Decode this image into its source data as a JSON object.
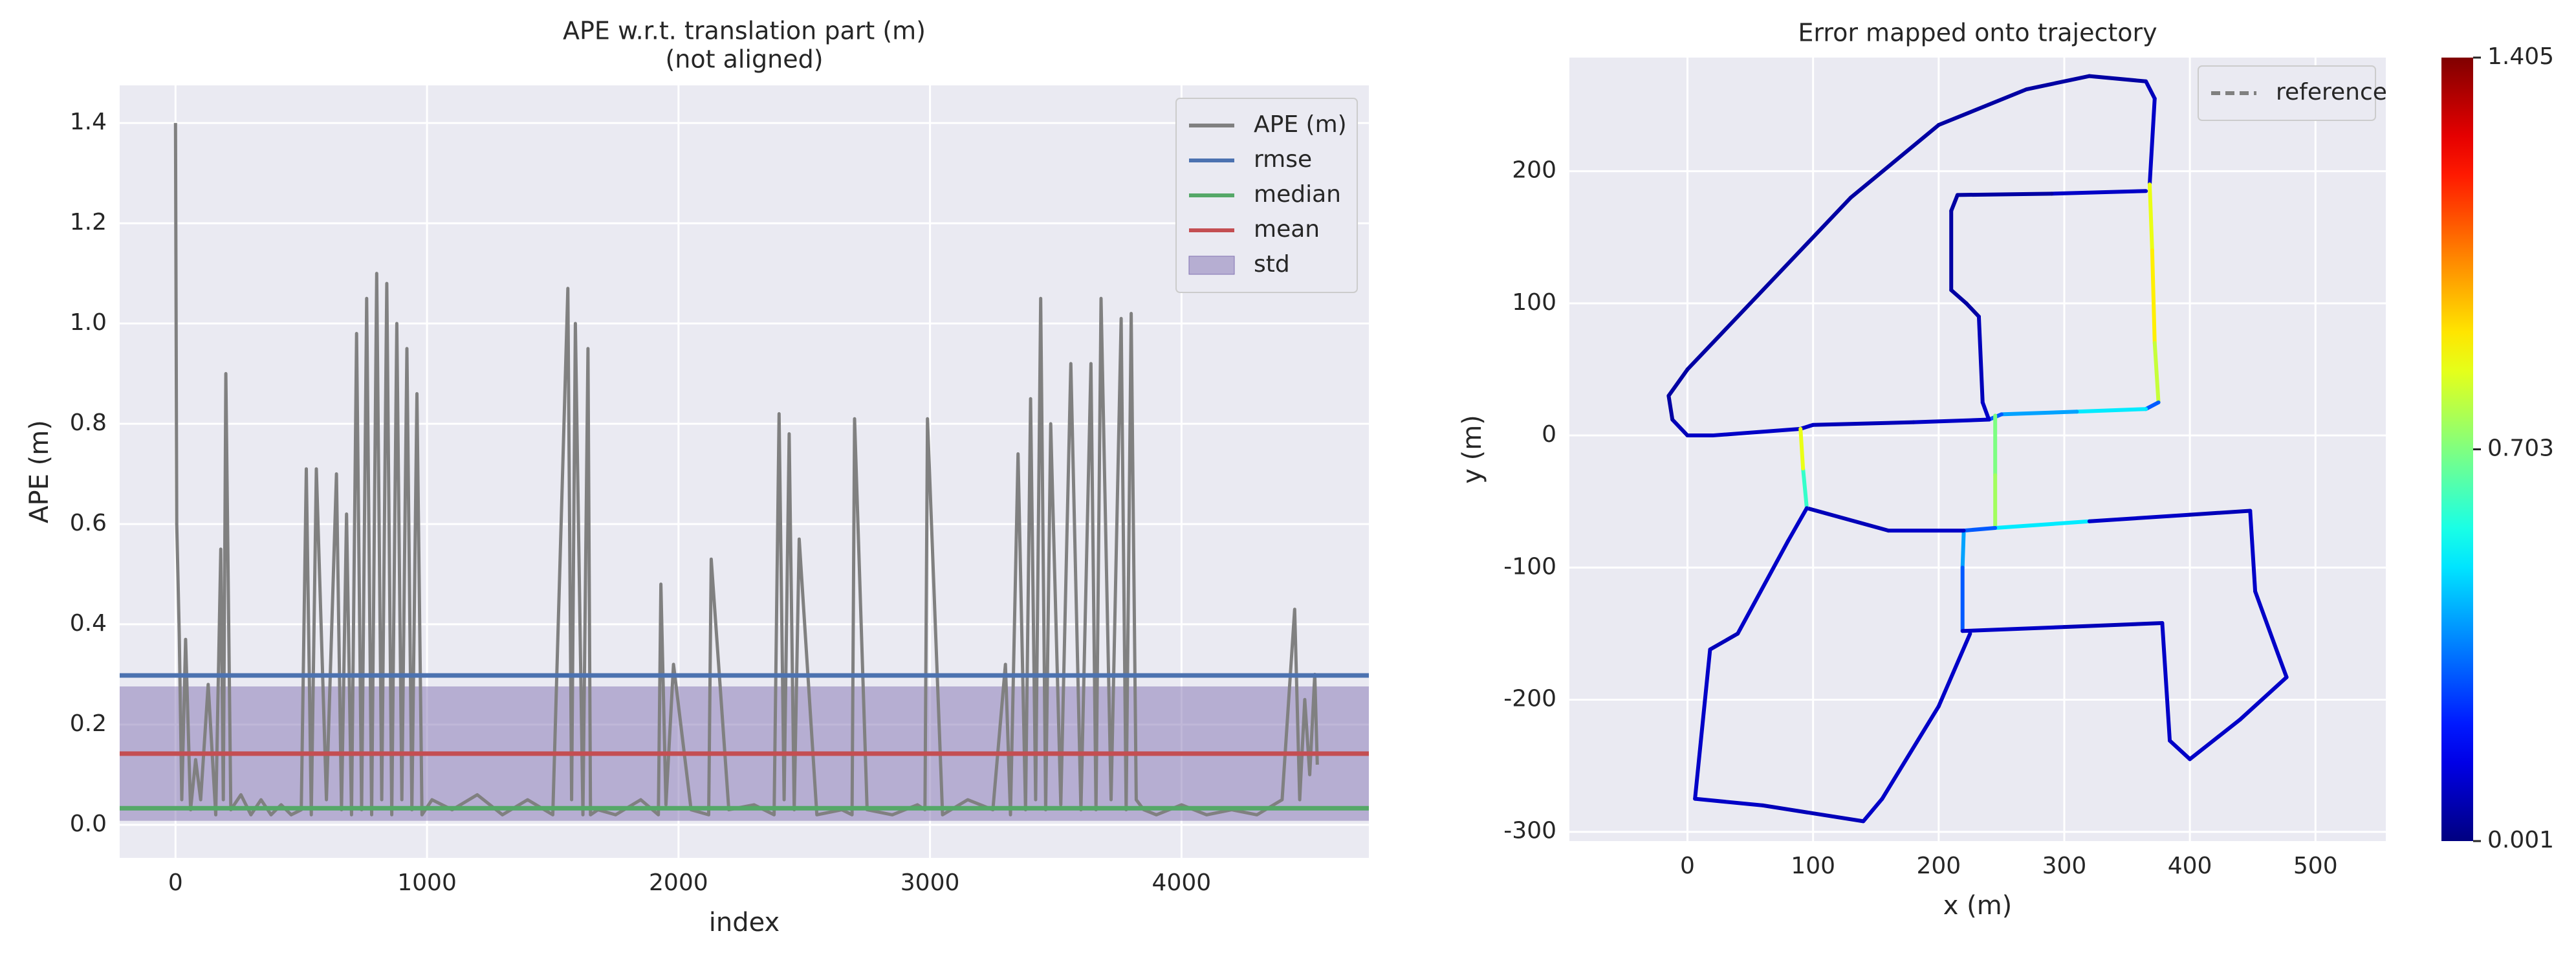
{
  "chart_data": [
    {
      "type": "line",
      "title": "APE w.r.t. translation part (m)",
      "subtitle": "(not aligned)",
      "x_label": "index",
      "y_label": "APE (m)",
      "x": [
        0,
        5,
        15,
        25,
        40,
        60,
        80,
        100,
        130,
        160,
        180,
        190,
        200,
        220,
        260,
        300,
        340,
        380,
        420,
        460,
        500,
        520,
        540,
        560,
        600,
        640,
        660,
        680,
        700,
        720,
        740,
        760,
        780,
        800,
        820,
        840,
        860,
        880,
        900,
        920,
        940,
        960,
        980,
        1020,
        1100,
        1200,
        1300,
        1400,
        1500,
        1560,
        1575,
        1590,
        1620,
        1640,
        1650,
        1680,
        1750,
        1850,
        1920,
        1930,
        1950,
        1980,
        2050,
        2120,
        2130,
        2200,
        2300,
        2380,
        2400,
        2420,
        2440,
        2460,
        2480,
        2550,
        2650,
        2690,
        2700,
        2750,
        2850,
        2950,
        2980,
        2990,
        3050,
        3150,
        3250,
        3300,
        3320,
        3350,
        3380,
        3400,
        3420,
        3440,
        3460,
        3480,
        3520,
        3560,
        3600,
        3640,
        3660,
        3680,
        3720,
        3760,
        3780,
        3800,
        3820,
        3850,
        3900,
        4000,
        4100,
        4200,
        4300,
        4400,
        4450,
        4470,
        4490,
        4510,
        4530,
        4540
      ],
      "series": [
        {
          "name": "APE (m)",
          "color": "#808080",
          "values": [
            1.4,
            0.6,
            0.38,
            0.05,
            0.37,
            0.03,
            0.13,
            0.05,
            0.28,
            0.02,
            0.55,
            0.05,
            0.9,
            0.03,
            0.06,
            0.02,
            0.05,
            0.02,
            0.04,
            0.02,
            0.03,
            0.71,
            0.02,
            0.71,
            0.05,
            0.7,
            0.03,
            0.62,
            0.02,
            0.98,
            0.03,
            1.05,
            0.02,
            1.1,
            0.05,
            1.08,
            0.02,
            1.0,
            0.05,
            0.95,
            0.03,
            0.86,
            0.02,
            0.05,
            0.03,
            0.06,
            0.02,
            0.05,
            0.02,
            1.07,
            0.05,
            1.0,
            0.02,
            0.95,
            0.02,
            0.03,
            0.02,
            0.05,
            0.02,
            0.48,
            0.04,
            0.32,
            0.03,
            0.02,
            0.53,
            0.03,
            0.04,
            0.02,
            0.82,
            0.05,
            0.78,
            0.03,
            0.57,
            0.02,
            0.03,
            0.02,
            0.81,
            0.03,
            0.02,
            0.04,
            0.03,
            0.81,
            0.02,
            0.05,
            0.03,
            0.32,
            0.02,
            0.74,
            0.03,
            0.85,
            0.05,
            1.05,
            0.03,
            0.8,
            0.04,
            0.92,
            0.03,
            0.92,
            0.03,
            1.05,
            0.05,
            1.01,
            0.03,
            1.02,
            0.05,
            0.03,
            0.02,
            0.04,
            0.02,
            0.03,
            0.02,
            0.05,
            0.43,
            0.05,
            0.25,
            0.1,
            0.3,
            0.12
          ]
        }
      ],
      "stats": [
        {
          "name": "rmse",
          "color": "#4c72b0",
          "value": 0.298
        },
        {
          "name": "median",
          "color": "#55a868",
          "value": 0.033
        },
        {
          "name": "mean",
          "color": "#c44e52",
          "value": 0.142
        }
      ],
      "std": {
        "name": "std",
        "color": "#8172b2",
        "value": 0.134
      },
      "xlim": [
        -222,
        4745
      ],
      "xticks": [
        0,
        1000,
        2000,
        3000,
        4000
      ],
      "ylim": [
        -0.066,
        1.475
      ],
      "yticks": [
        {
          "value": 0,
          "label": "0.0"
        },
        0.2,
        0.4,
        0.6,
        0.8,
        {
          "value": 1,
          "label": "1.0"
        },
        1.2,
        1.4
      ],
      "grid": true,
      "legend": "upper right"
    },
    {
      "type": "trajectory",
      "title": "Error mapped onto trajectory",
      "x_label": "x (m)",
      "y_label": "y (m)",
      "series": [
        {
          "name": "reference",
          "color": "#808080",
          "linestyle": "dashed",
          "x": [
            90,
            20,
            0,
            -12,
            -15,
            0,
            130,
            200,
            270,
            320,
            365,
            372,
            368,
            370,
            372,
            375,
            365,
            310,
            250,
            240,
            180,
            100,
            90,
            null,
            365,
            290,
            215,
            210,
            210,
            222,
            232,
            235,
            240,
            null,
            245,
            245,
            245,
            320,
            400,
            448,
            452,
            470,
            477,
            440,
            400,
            null,
            245,
            220,
            219,
            219,
            300,
            378,
            384,
            400,
            null,
            220,
            160,
            95,
            92,
            90,
            null,
            95,
            80,
            40,
            18,
            6,
            60,
            140,
            155,
            200,
            225
          ],
          "y": [
            5,
            0,
            0,
            12,
            30,
            50,
            180,
            235,
            262,
            272,
            268,
            255,
            190,
            140,
            70,
            25,
            20,
            18,
            16,
            12,
            10,
            8,
            5,
            null,
            185,
            183,
            182,
            170,
            110,
            100,
            90,
            25,
            12,
            null,
            15,
            -30,
            -70,
            -65,
            -60,
            -57,
            -118,
            -165,
            -183,
            -215,
            -245,
            null,
            -70,
            -72,
            -100,
            -148,
            -145,
            -142,
            -231,
            -245,
            null,
            -72,
            -72,
            -55,
            -25,
            5,
            null,
            -55,
            -80,
            -150,
            -162,
            -275,
            -280,
            -292,
            -275,
            -205,
            -150
          ]
        }
      ],
      "trajectory": {
        "x": [
          90,
          20,
          0,
          -12,
          -15,
          0,
          130,
          200,
          270,
          320,
          365,
          372,
          368,
          370,
          372,
          375,
          365,
          310,
          250,
          240,
          180,
          100,
          90,
          null,
          365,
          290,
          215,
          210,
          210,
          222,
          232,
          235,
          240,
          null,
          245,
          245,
          245,
          320,
          400,
          448,
          452,
          470,
          477,
          440,
          400,
          null,
          245,
          220,
          219,
          219,
          300,
          378,
          384,
          400,
          null,
          220,
          160,
          95,
          92,
          90,
          null,
          95,
          80,
          40,
          18,
          6,
          60,
          140,
          155,
          200,
          225
        ],
        "y": [
          5,
          0,
          0,
          12,
          30,
          50,
          180,
          235,
          262,
          272,
          268,
          255,
          190,
          140,
          70,
          25,
          20,
          18,
          16,
          12,
          10,
          8,
          5,
          null,
          185,
          183,
          182,
          170,
          110,
          100,
          90,
          25,
          12,
          null,
          15,
          -30,
          -70,
          -65,
          -60,
          -57,
          -118,
          -165,
          -183,
          -215,
          -245,
          null,
          -70,
          -72,
          -100,
          -148,
          -145,
          -142,
          -231,
          -245,
          null,
          -72,
          -72,
          -55,
          -25,
          5,
          null,
          -55,
          -80,
          -150,
          -162,
          -275,
          -280,
          -292,
          -275,
          -205,
          -150
        ],
        "error": [
          0.1,
          0.1,
          0.08,
          0.05,
          0.05,
          0.05,
          0.05,
          0.05,
          0.05,
          0.05,
          0.08,
          0.1,
          0.85,
          0.9,
          0.8,
          0.3,
          0.5,
          0.4,
          0.3,
          0.1,
          0.08,
          0.1,
          0.1,
          null,
          0.1,
          0.05,
          0.05,
          0.05,
          0.05,
          0.05,
          0.08,
          0.1,
          0.1,
          null,
          0.7,
          0.75,
          0.5,
          0.1,
          0.08,
          0.1,
          0.1,
          0.1,
          0.1,
          0.1,
          0.2,
          null,
          0.3,
          0.4,
          0.3,
          0.1,
          0.08,
          0.1,
          0.1,
          0.1,
          null,
          0.1,
          0.08,
          0.6,
          0.85,
          0.7,
          null,
          0.1,
          0.1,
          0.08,
          0.1,
          0.1,
          0.08,
          0.1,
          0.1,
          0.1,
          0.1
        ]
      },
      "colormap": "jet",
      "colorbar": {
        "lim": [
          0.001,
          1.405
        ],
        "ticks": [
          0.001,
          0.703,
          1.405
        ]
      },
      "xlim": [
        -94,
        556
      ],
      "xticks": [
        0,
        100,
        200,
        300,
        400,
        500
      ],
      "ylim": [
        -307,
        286
      ],
      "yticks": [
        -300,
        -200,
        -100,
        0,
        100,
        200
      ],
      "grid": true,
      "legend": "upper right"
    }
  ]
}
